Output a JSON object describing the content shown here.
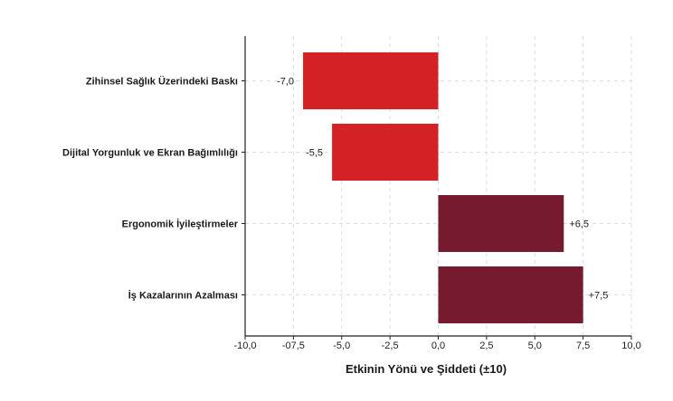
{
  "chart_data": {
    "type": "bar",
    "orientation": "horizontal",
    "title": "",
    "xlabel": "Etkinin Yönü ve Şiddeti (±10)",
    "ylabel": "",
    "xlim": [
      -10,
      10
    ],
    "grid": true,
    "legend": "none",
    "categories": [
      "Zihinsel Sağlık Üzerindeki Baskı",
      "Dijital Yorgunluk ve Ekran Bağımlılığı",
      "Ergonomik İyileştirmeler",
      "İş Kazalarının Azalması"
    ],
    "values": [
      -7.0,
      -5.5,
      6.5,
      7.5
    ],
    "value_labels": [
      "-7,0",
      "-5,5",
      "+6,5",
      "+7,5"
    ],
    "x_ticks": [
      -10,
      -7.5,
      -5,
      -2.5,
      0,
      2.5,
      5,
      7.5,
      10
    ],
    "x_tick_labels": [
      "-10,0",
      "-07,5",
      "-5,0",
      "-2,5",
      "0,0",
      "2,5",
      "5,0",
      "7,5",
      "10,0"
    ],
    "colors": {
      "negative": "#d42126",
      "positive": "#751a2f",
      "grid": "#dddddd",
      "axis": "#222222"
    }
  }
}
